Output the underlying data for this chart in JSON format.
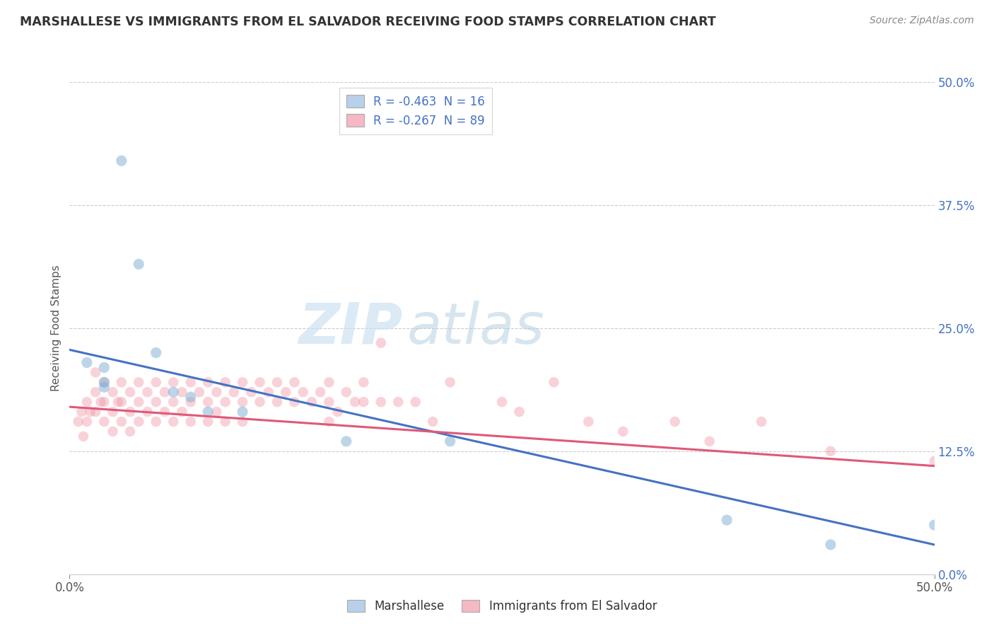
{
  "title": "MARSHALLESE VS IMMIGRANTS FROM EL SALVADOR RECEIVING FOOD STAMPS CORRELATION CHART",
  "source": "Source: ZipAtlas.com",
  "ylabel": "Receiving Food Stamps",
  "ytick_labels": [
    "0.0%",
    "12.5%",
    "25.0%",
    "37.5%",
    "50.0%"
  ],
  "ytick_values": [
    0.0,
    0.125,
    0.25,
    0.375,
    0.5
  ],
  "xlim": [
    0.0,
    0.5
  ],
  "ylim": [
    0.0,
    0.5
  ],
  "legend_blue_label": "R = -0.463  N = 16",
  "legend_pink_label": "R = -0.267  N = 89",
  "legend_blue_color": "#b8d0ea",
  "legend_pink_color": "#f5b8c4",
  "blue_scatter_color": "#7aadd4",
  "pink_scatter_color": "#f090a0",
  "blue_line_color": "#4472c4",
  "pink_line_color": "#e05878",
  "watermark_zip": "ZIP",
  "watermark_atlas": "atlas",
  "blue_points_x": [
    0.01,
    0.02,
    0.02,
    0.02,
    0.03,
    0.04,
    0.05,
    0.06,
    0.07,
    0.08,
    0.1,
    0.16,
    0.22,
    0.38,
    0.44,
    0.5
  ],
  "blue_points_y": [
    0.215,
    0.195,
    0.21,
    0.19,
    0.42,
    0.315,
    0.225,
    0.185,
    0.18,
    0.165,
    0.165,
    0.135,
    0.135,
    0.055,
    0.03,
    0.05
  ],
  "blue_trend_x": [
    0.0,
    0.5
  ],
  "blue_trend_y": [
    0.228,
    0.03
  ],
  "pink_trend_x": [
    0.0,
    0.5
  ],
  "pink_trend_y": [
    0.17,
    0.11
  ],
  "pink_points": [
    [
      0.005,
      0.155
    ],
    [
      0.007,
      0.165
    ],
    [
      0.008,
      0.14
    ],
    [
      0.01,
      0.175
    ],
    [
      0.01,
      0.155
    ],
    [
      0.012,
      0.165
    ],
    [
      0.015,
      0.205
    ],
    [
      0.015,
      0.185
    ],
    [
      0.015,
      0.165
    ],
    [
      0.018,
      0.175
    ],
    [
      0.02,
      0.195
    ],
    [
      0.02,
      0.175
    ],
    [
      0.02,
      0.155
    ],
    [
      0.025,
      0.185
    ],
    [
      0.025,
      0.165
    ],
    [
      0.025,
      0.145
    ],
    [
      0.028,
      0.175
    ],
    [
      0.03,
      0.195
    ],
    [
      0.03,
      0.175
    ],
    [
      0.03,
      0.155
    ],
    [
      0.035,
      0.185
    ],
    [
      0.035,
      0.165
    ],
    [
      0.035,
      0.145
    ],
    [
      0.04,
      0.195
    ],
    [
      0.04,
      0.175
    ],
    [
      0.04,
      0.155
    ],
    [
      0.045,
      0.185
    ],
    [
      0.045,
      0.165
    ],
    [
      0.05,
      0.195
    ],
    [
      0.05,
      0.175
    ],
    [
      0.05,
      0.155
    ],
    [
      0.055,
      0.185
    ],
    [
      0.055,
      0.165
    ],
    [
      0.06,
      0.195
    ],
    [
      0.06,
      0.175
    ],
    [
      0.06,
      0.155
    ],
    [
      0.065,
      0.185
    ],
    [
      0.065,
      0.165
    ],
    [
      0.07,
      0.195
    ],
    [
      0.07,
      0.175
    ],
    [
      0.07,
      0.155
    ],
    [
      0.075,
      0.185
    ],
    [
      0.08,
      0.195
    ],
    [
      0.08,
      0.175
    ],
    [
      0.08,
      0.155
    ],
    [
      0.085,
      0.185
    ],
    [
      0.085,
      0.165
    ],
    [
      0.09,
      0.195
    ],
    [
      0.09,
      0.175
    ],
    [
      0.09,
      0.155
    ],
    [
      0.095,
      0.185
    ],
    [
      0.1,
      0.195
    ],
    [
      0.1,
      0.175
    ],
    [
      0.1,
      0.155
    ],
    [
      0.105,
      0.185
    ],
    [
      0.11,
      0.195
    ],
    [
      0.11,
      0.175
    ],
    [
      0.115,
      0.185
    ],
    [
      0.12,
      0.195
    ],
    [
      0.12,
      0.175
    ],
    [
      0.125,
      0.185
    ],
    [
      0.13,
      0.195
    ],
    [
      0.13,
      0.175
    ],
    [
      0.135,
      0.185
    ],
    [
      0.14,
      0.175
    ],
    [
      0.145,
      0.185
    ],
    [
      0.15,
      0.195
    ],
    [
      0.15,
      0.175
    ],
    [
      0.15,
      0.155
    ],
    [
      0.155,
      0.165
    ],
    [
      0.16,
      0.185
    ],
    [
      0.165,
      0.175
    ],
    [
      0.17,
      0.195
    ],
    [
      0.17,
      0.175
    ],
    [
      0.18,
      0.235
    ],
    [
      0.18,
      0.175
    ],
    [
      0.19,
      0.175
    ],
    [
      0.2,
      0.175
    ],
    [
      0.21,
      0.155
    ],
    [
      0.22,
      0.195
    ],
    [
      0.25,
      0.175
    ],
    [
      0.26,
      0.165
    ],
    [
      0.28,
      0.195
    ],
    [
      0.3,
      0.155
    ],
    [
      0.32,
      0.145
    ],
    [
      0.35,
      0.155
    ],
    [
      0.37,
      0.135
    ],
    [
      0.4,
      0.155
    ],
    [
      0.44,
      0.125
    ],
    [
      0.5,
      0.115
    ]
  ],
  "background_color": "#ffffff",
  "grid_color": "#cccccc"
}
